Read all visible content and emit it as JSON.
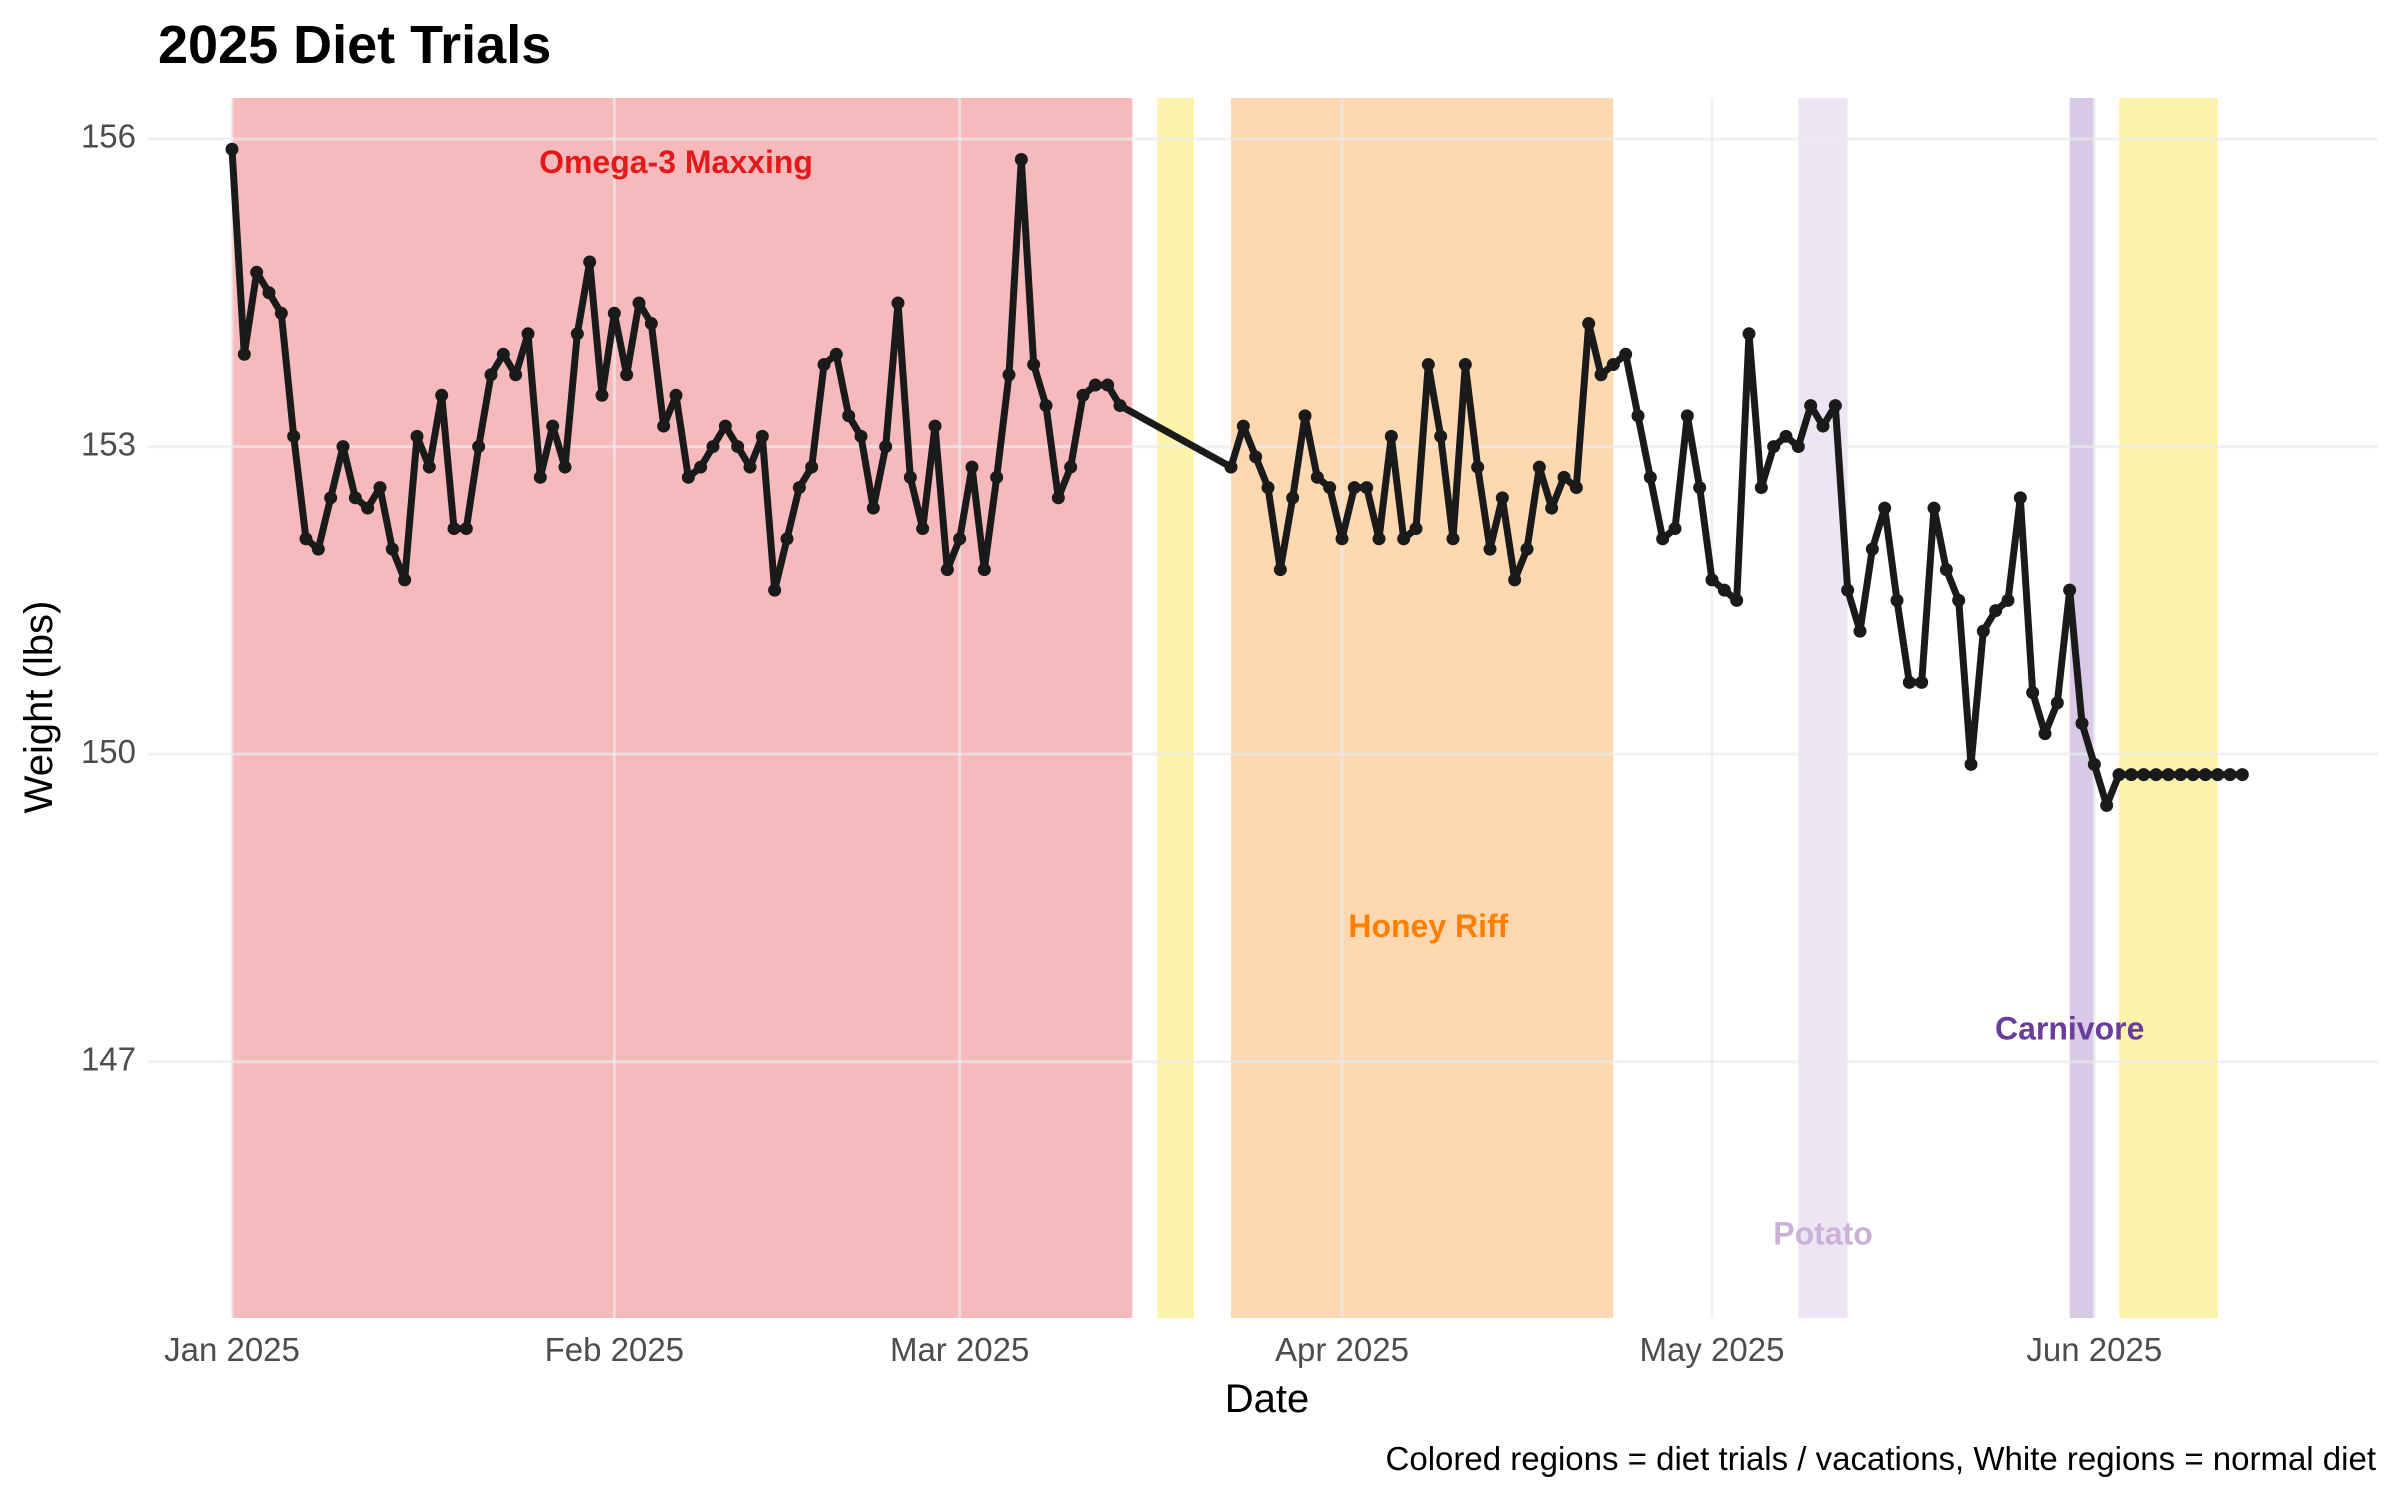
{
  "chart_data": {
    "type": "line",
    "title": "2025 Diet Trials",
    "xlabel": "Date",
    "ylabel": "Weight (lbs)",
    "caption": "Colored regions = diet trials / vacations, White regions = normal diet",
    "x_range": [
      "2024-12-26",
      "2025-06-24"
    ],
    "ylim": [
      144.5,
      156.4
    ],
    "x_ticks": [
      {
        "date": "2025-01-01",
        "label": "Jan 2025"
      },
      {
        "date": "2025-02-01",
        "label": "Feb 2025"
      },
      {
        "date": "2025-03-01",
        "label": "Mar 2025"
      },
      {
        "date": "2025-04-01",
        "label": "Apr 2025"
      },
      {
        "date": "2025-05-01",
        "label": "May 2025"
      },
      {
        "date": "2025-06-01",
        "label": "Jun 2025"
      }
    ],
    "y_ticks": [
      {
        "value": 147,
        "label": "147"
      },
      {
        "value": 150,
        "label": "150"
      },
      {
        "value": 153,
        "label": "153"
      },
      {
        "value": 156,
        "label": "156"
      }
    ],
    "grid": true,
    "regions": [
      {
        "start": "2025-01-01",
        "end": "2025-03-15",
        "color": "#f4a6aa",
        "opacity": 0.78,
        "label": "Omega-3 Maxxing",
        "label_color": "#e31a1c",
        "label_date": "2025-02-06",
        "label_value": 155.75
      },
      {
        "start": "2025-03-17",
        "end": "2025-03-20",
        "color": "#fef2a6",
        "opacity": 0.95
      },
      {
        "start": "2025-03-23",
        "end": "2025-04-23",
        "color": "#fdd6ad",
        "opacity": 0.95,
        "label": "Honey Riff",
        "label_color": "#ff7f00",
        "label_date": "2025-04-08",
        "label_value": 148.3
      },
      {
        "start": "2025-05-08",
        "end": "2025-05-12",
        "color": "#ece4f3",
        "opacity": 0.95,
        "label": "Potato",
        "label_color": "#cab2d6",
        "label_date": "2025-05-10",
        "label_value": 145.3
      },
      {
        "start": "2025-05-30",
        "end": "2025-06-01",
        "color": "#d6c7e6",
        "opacity": 0.95,
        "label": "Carnivore",
        "label_color": "#6a3d9a",
        "label_date": "2025-05-30",
        "label_value": 147.3
      },
      {
        "start": "2025-06-03",
        "end": "2025-06-11",
        "color": "#fef2a6",
        "opacity": 0.95
      }
    ],
    "series": [
      {
        "color": "#1a1a1a",
        "points": [
          [
            "2025-01-01",
            155.9
          ],
          [
            "2025-01-02",
            153.9
          ],
          [
            "2025-01-03",
            154.7
          ],
          [
            "2025-01-04",
            154.5
          ],
          [
            "2025-01-05",
            154.3
          ],
          [
            "2025-01-06",
            153.1
          ],
          [
            "2025-01-07",
            152.1
          ],
          [
            "2025-01-08",
            152.0
          ],
          [
            "2025-01-09",
            152.5
          ],
          [
            "2025-01-10",
            153.0
          ],
          [
            "2025-01-11",
            152.5
          ],
          [
            "2025-01-12",
            152.4
          ],
          [
            "2025-01-13",
            152.6
          ],
          [
            "2025-01-14",
            152.0
          ],
          [
            "2025-01-15",
            151.7
          ],
          [
            "2025-01-16",
            153.1
          ],
          [
            "2025-01-17",
            152.8
          ],
          [
            "2025-01-18",
            153.5
          ],
          [
            "2025-01-19",
            152.2
          ],
          [
            "2025-01-20",
            152.2
          ],
          [
            "2025-01-21",
            153.0
          ],
          [
            "2025-01-22",
            153.7
          ],
          [
            "2025-01-23",
            153.9
          ],
          [
            "2025-01-24",
            153.7
          ],
          [
            "2025-01-25",
            154.1
          ],
          [
            "2025-01-26",
            152.7
          ],
          [
            "2025-01-27",
            153.2
          ],
          [
            "2025-01-28",
            152.8
          ],
          [
            "2025-01-29",
            154.1
          ],
          [
            "2025-01-30",
            154.8
          ],
          [
            "2025-01-31",
            153.5
          ],
          [
            "2025-02-01",
            154.3
          ],
          [
            "2025-02-02",
            153.7
          ],
          [
            "2025-02-03",
            154.4
          ],
          [
            "2025-02-04",
            154.2
          ],
          [
            "2025-02-05",
            153.2
          ],
          [
            "2025-02-06",
            153.5
          ],
          [
            "2025-02-07",
            152.7
          ],
          [
            "2025-02-08",
            152.8
          ],
          [
            "2025-02-09",
            153.0
          ],
          [
            "2025-02-10",
            153.2
          ],
          [
            "2025-02-11",
            153.0
          ],
          [
            "2025-02-12",
            152.8
          ],
          [
            "2025-02-13",
            153.1
          ],
          [
            "2025-02-14",
            151.6
          ],
          [
            "2025-02-15",
            152.1
          ],
          [
            "2025-02-16",
            152.6
          ],
          [
            "2025-02-17",
            152.8
          ],
          [
            "2025-02-18",
            153.8
          ],
          [
            "2025-02-19",
            153.9
          ],
          [
            "2025-02-20",
            153.3
          ],
          [
            "2025-02-21",
            153.1
          ],
          [
            "2025-02-22",
            152.4
          ],
          [
            "2025-02-23",
            153.0
          ],
          [
            "2025-02-24",
            154.4
          ],
          [
            "2025-02-25",
            152.7
          ],
          [
            "2025-02-26",
            152.2
          ],
          [
            "2025-02-27",
            153.2
          ],
          [
            "2025-02-28",
            151.8
          ],
          [
            "2025-03-01",
            152.1
          ],
          [
            "2025-03-02",
            152.8
          ],
          [
            "2025-03-03",
            151.8
          ],
          [
            "2025-03-04",
            152.7
          ],
          [
            "2025-03-05",
            153.7
          ],
          [
            "2025-03-06",
            155.8
          ],
          [
            "2025-03-07",
            153.8
          ],
          [
            "2025-03-08",
            153.4
          ],
          [
            "2025-03-09",
            152.5
          ],
          [
            "2025-03-10",
            152.8
          ],
          [
            "2025-03-11",
            153.5
          ],
          [
            "2025-03-12",
            153.6
          ],
          [
            "2025-03-13",
            153.6
          ],
          [
            "2025-03-14",
            153.4
          ],
          [
            "2025-03-23",
            152.8
          ],
          [
            "2025-03-24",
            153.2
          ],
          [
            "2025-03-25",
            152.9
          ],
          [
            "2025-03-26",
            152.6
          ],
          [
            "2025-03-27",
            151.8
          ],
          [
            "2025-03-28",
            152.5
          ],
          [
            "2025-03-29",
            153.3
          ],
          [
            "2025-03-30",
            152.7
          ],
          [
            "2025-03-31",
            152.6
          ],
          [
            "2025-04-01",
            152.1
          ],
          [
            "2025-04-02",
            152.6
          ],
          [
            "2025-04-03",
            152.6
          ],
          [
            "2025-04-04",
            152.1
          ],
          [
            "2025-04-05",
            153.1
          ],
          [
            "2025-04-06",
            152.1
          ],
          [
            "2025-04-07",
            152.2
          ],
          [
            "2025-04-08",
            153.8
          ],
          [
            "2025-04-09",
            153.1
          ],
          [
            "2025-04-10",
            152.1
          ],
          [
            "2025-04-11",
            153.8
          ],
          [
            "2025-04-12",
            152.8
          ],
          [
            "2025-04-13",
            152.0
          ],
          [
            "2025-04-14",
            152.5
          ],
          [
            "2025-04-15",
            151.7
          ],
          [
            "2025-04-16",
            152.0
          ],
          [
            "2025-04-17",
            152.8
          ],
          [
            "2025-04-18",
            152.4
          ],
          [
            "2025-04-19",
            152.7
          ],
          [
            "2025-04-20",
            152.6
          ],
          [
            "2025-04-21",
            154.2
          ],
          [
            "2025-04-22",
            153.7
          ],
          [
            "2025-04-23",
            153.8
          ],
          [
            "2025-04-24",
            153.9
          ],
          [
            "2025-04-25",
            153.3
          ],
          [
            "2025-04-26",
            152.7
          ],
          [
            "2025-04-27",
            152.1
          ],
          [
            "2025-04-28",
            152.2
          ],
          [
            "2025-04-29",
            153.3
          ],
          [
            "2025-04-30",
            152.6
          ],
          [
            "2025-05-01",
            151.7
          ],
          [
            "2025-05-02",
            151.6
          ],
          [
            "2025-05-03",
            151.5
          ],
          [
            "2025-05-04",
            154.1
          ],
          [
            "2025-05-05",
            152.6
          ],
          [
            "2025-05-06",
            153.0
          ],
          [
            "2025-05-07",
            153.1
          ],
          [
            "2025-05-08",
            153.0
          ],
          [
            "2025-05-09",
            153.4
          ],
          [
            "2025-05-10",
            153.2
          ],
          [
            "2025-05-11",
            153.4
          ],
          [
            "2025-05-12",
            151.6
          ],
          [
            "2025-05-13",
            151.2
          ],
          [
            "2025-05-14",
            152.0
          ],
          [
            "2025-05-15",
            152.4
          ],
          [
            "2025-05-16",
            151.5
          ],
          [
            "2025-05-17",
            150.7
          ],
          [
            "2025-05-18",
            150.7
          ],
          [
            "2025-05-19",
            152.4
          ],
          [
            "2025-05-20",
            151.8
          ],
          [
            "2025-05-21",
            151.5
          ],
          [
            "2025-05-22",
            149.9
          ],
          [
            "2025-05-23",
            151.2
          ],
          [
            "2025-05-24",
            151.4
          ],
          [
            "2025-05-25",
            151.5
          ],
          [
            "2025-05-26",
            152.5
          ],
          [
            "2025-05-27",
            150.6
          ],
          [
            "2025-05-28",
            150.2
          ],
          [
            "2025-05-29",
            150.5
          ],
          [
            "2025-05-30",
            151.6
          ],
          [
            "2025-05-31",
            150.3
          ],
          [
            "2025-06-01",
            149.9
          ],
          [
            "2025-06-02",
            149.5
          ],
          [
            "2025-06-03",
            149.8
          ],
          [
            "2025-06-04",
            149.8
          ],
          [
            "2025-06-05",
            149.8
          ],
          [
            "2025-06-06",
            149.8
          ],
          [
            "2025-06-07",
            149.8
          ],
          [
            "2025-06-08",
            149.8
          ],
          [
            "2025-06-09",
            149.8
          ],
          [
            "2025-06-10",
            149.8
          ],
          [
            "2025-06-11",
            149.8
          ],
          [
            "2025-06-12",
            149.8
          ],
          [
            "2025-06-13",
            149.8
          ]
        ]
      }
    ]
  }
}
